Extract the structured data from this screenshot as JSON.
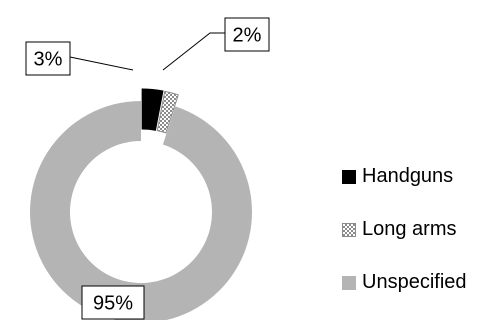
{
  "chart_data": {
    "type": "pie",
    "variant": "donut",
    "title": "",
    "categories": [
      "Handguns",
      "Long arms",
      "Unspecified"
    ],
    "values": [
      3,
      2,
      95
    ],
    "data_labels": [
      "3%",
      "2%",
      "95%"
    ],
    "colors": [
      "#000000",
      "hatched-grey",
      "#b4b4b4"
    ],
    "exploded_slices": [
      "Handguns",
      "Long arms"
    ],
    "legend_position": "right"
  }
}
